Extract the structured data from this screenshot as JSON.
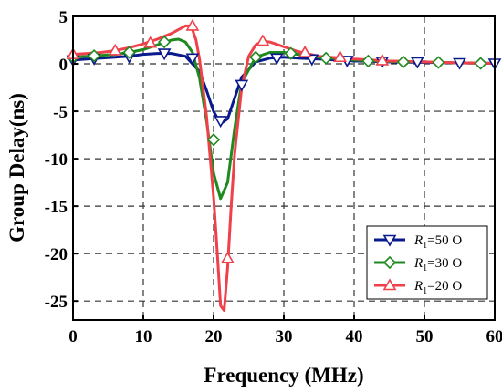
{
  "chart_data": {
    "type": "line",
    "xlabel": "Frequency (MHz)",
    "ylabel": "Group Delay(ns)",
    "xlim": [
      0,
      60
    ],
    "ylim": [
      -27,
      5
    ],
    "x_ticks": [
      0,
      10,
      20,
      30,
      40,
      50,
      60
    ],
    "y_ticks": [
      5,
      0,
      -5,
      -10,
      -15,
      -20,
      -25
    ],
    "grid": true,
    "grid_style": "dashed",
    "legend_position": "bottom-right",
    "series": [
      {
        "label_main": "R",
        "label_sub": "1",
        "label_rest": "=50 O",
        "color": "#0a1a8c",
        "marker": "triangle-down",
        "x": [
          0,
          2,
          4,
          6,
          8,
          10,
          12,
          14,
          16,
          18,
          19,
          20,
          21,
          22,
          23,
          24,
          26,
          28,
          30,
          32,
          35,
          40,
          45,
          50,
          55,
          60
        ],
        "y": [
          0.4,
          0.5,
          0.6,
          0.7,
          0.8,
          1.0,
          1.1,
          1.1,
          0.8,
          -0.8,
          -2.8,
          -5.0,
          -6.3,
          -5.8,
          -3.6,
          -1.4,
          0.2,
          0.6,
          0.7,
          0.6,
          0.5,
          0.3,
          0.2,
          0.15,
          0.1,
          0.05
        ],
        "marker_x": [
          0,
          3,
          8,
          13,
          17,
          21,
          24,
          29,
          34,
          39,
          44,
          49,
          55,
          60
        ],
        "marker_y": [
          0.4,
          0.55,
          0.75,
          1.1,
          0.6,
          -6.0,
          -2.2,
          0.6,
          0.5,
          0.35,
          0.25,
          0.2,
          0.1,
          0.05
        ]
      },
      {
        "label_main": "R",
        "label_sub": "1",
        "label_rest": "=30 O",
        "color": "#1e8a1e",
        "marker": "diamond",
        "x": [
          0,
          2,
          4,
          6,
          8,
          10,
          12,
          14,
          15,
          16,
          17,
          18,
          19,
          20,
          21,
          22,
          23,
          24,
          26,
          28,
          30,
          32,
          35,
          40,
          45,
          50,
          55,
          60
        ],
        "y": [
          0.7,
          0.8,
          0.9,
          1.0,
          1.2,
          1.5,
          2.0,
          2.5,
          2.6,
          2.3,
          1.2,
          -1.5,
          -6.0,
          -11.5,
          -14.2,
          -12.5,
          -6.8,
          -2.0,
          0.7,
          1.2,
          1.2,
          1.0,
          0.7,
          0.4,
          0.25,
          0.2,
          0.1,
          0.05
        ],
        "marker_x": [
          0,
          3,
          8,
          13,
          20,
          26,
          31,
          36,
          42,
          47,
          52,
          58
        ],
        "marker_y": [
          0.7,
          0.85,
          1.2,
          2.3,
          -8.0,
          0.7,
          1.1,
          0.6,
          0.3,
          0.2,
          0.15,
          0.05
        ]
      },
      {
        "label_main": "R",
        "label_sub": "1",
        "label_rest": "=20 O",
        "color": "#f0404a",
        "marker": "triangle-up",
        "x": [
          0,
          2,
          4,
          6,
          8,
          10,
          12,
          14,
          15,
          16,
          16.8,
          17.5,
          18,
          19,
          20,
          20.5,
          21,
          21.5,
          22,
          22.5,
          23,
          24,
          25,
          26,
          27,
          28,
          30,
          32,
          35,
          40,
          45,
          50,
          55,
          60
        ],
        "y": [
          1.0,
          1.1,
          1.2,
          1.4,
          1.7,
          2.1,
          2.6,
          3.2,
          3.6,
          4.0,
          4.0,
          2.5,
          0.5,
          -5.5,
          -14.0,
          -19.5,
          -25.5,
          -26.0,
          -21.5,
          -15.0,
          -9.5,
          -2.5,
          0.8,
          2.0,
          2.4,
          2.3,
          1.8,
          1.3,
          0.8,
          0.5,
          0.3,
          0.2,
          0.1,
          0.05
        ],
        "marker_x": [
          0,
          6,
          11,
          17,
          22,
          27,
          33,
          38,
          44
        ],
        "marker_y": [
          1.0,
          1.4,
          2.2,
          4.0,
          -20.5,
          2.4,
          1.2,
          0.7,
          0.35
        ]
      }
    ]
  }
}
